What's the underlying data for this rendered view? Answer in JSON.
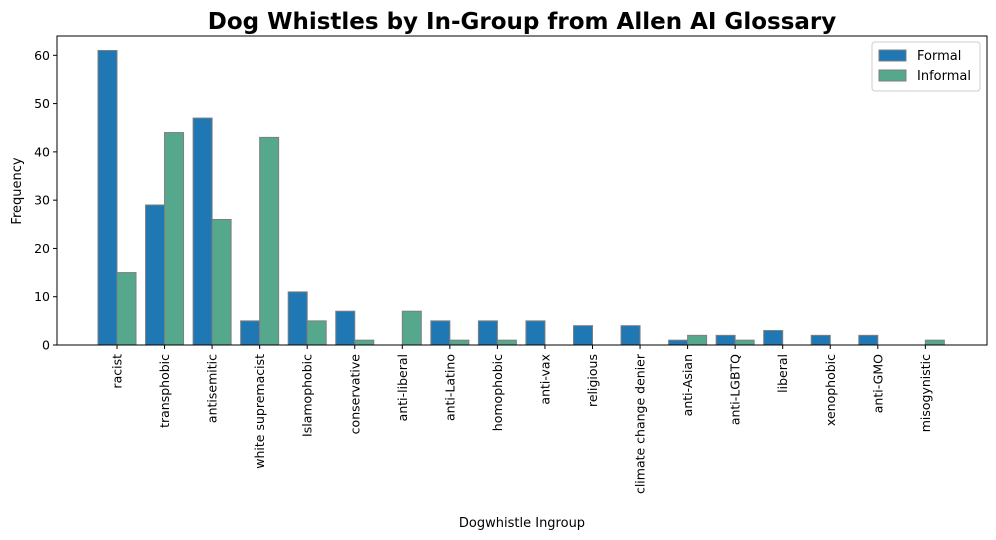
{
  "chart_data": {
    "type": "bar",
    "title": "Dog Whistles by In-Group from Allen AI Glossary",
    "xlabel": "Dogwhistle Ingroup",
    "ylabel": "Frequency",
    "ylim": [
      0,
      64
    ],
    "yticks": [
      0,
      10,
      20,
      30,
      40,
      50,
      60
    ],
    "grid": false,
    "legend_position": "top-right",
    "categories": [
      "racist",
      "transphobic",
      "antisemitic",
      "white supremacist",
      "Islamophobic",
      "conservative",
      "anti-liberal",
      "anti-Latino",
      "homophobic",
      "anti-vax",
      "religious",
      "climate change denier",
      "anti-Asian",
      "anti-LGBTQ",
      "liberal",
      "xenophobic",
      "anti-GMO",
      "misogynistic"
    ],
    "series": [
      {
        "name": "Formal",
        "color": "#1f77b4",
        "values": [
          61,
          29,
          47,
          5,
          11,
          7,
          0,
          5,
          5,
          5,
          4,
          4,
          1,
          2,
          3,
          2,
          2,
          0
        ]
      },
      {
        "name": "Informal",
        "color": "#55a88b",
        "values": [
          15,
          44,
          26,
          43,
          5,
          1,
          7,
          1,
          1,
          0,
          0,
          0,
          2,
          1,
          0,
          0,
          0,
          1
        ]
      }
    ]
  }
}
